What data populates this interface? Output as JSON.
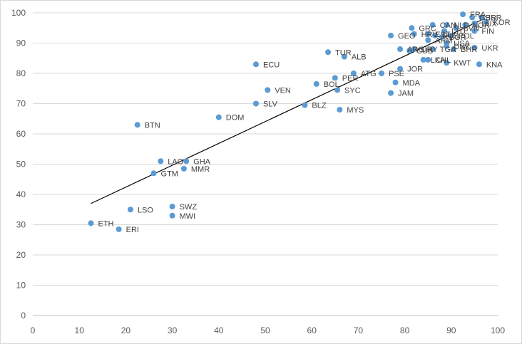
{
  "chart_data": {
    "type": "scatter",
    "title": "",
    "xlabel": "",
    "ylabel": "",
    "xlim": [
      0,
      100
    ],
    "ylim": [
      0,
      100
    ],
    "x_ticks": [
      "0",
      "10",
      "20",
      "30",
      "40",
      "50",
      "60",
      "70",
      "80",
      "90",
      "100"
    ],
    "y_ticks": [
      "0",
      "10",
      "20",
      "30",
      "40",
      "50",
      "60",
      "70",
      "80",
      "90",
      "100"
    ],
    "grid": "horizontal",
    "legend": "none",
    "marker_color": "#5b9bd5",
    "trendline": {
      "type": "linear",
      "x": [
        12.5,
        97
      ],
      "y": [
        37,
        98
      ]
    },
    "points": [
      {
        "label": "FRA",
        "x": 92.5,
        "y": 99.5
      },
      {
        "label": "ISR",
        "x": 96.5,
        "y": 98.5
      },
      {
        "label": "GBR",
        "x": 94.5,
        "y": 98.5
      },
      {
        "label": "KOR",
        "x": 97.5,
        "y": 97
      },
      {
        "label": "LUX",
        "x": 95,
        "y": 96.5
      },
      {
        "label": "CAN",
        "x": 86,
        "y": 96
      },
      {
        "label": "NLD",
        "x": 89,
        "y": 96
      },
      {
        "label": "NOR",
        "x": 93,
        "y": 96
      },
      {
        "label": "SVN",
        "x": 91,
        "y": 95
      },
      {
        "label": "GRC",
        "x": 81.5,
        "y": 95
      },
      {
        "label": "LTU",
        "x": 88.5,
        "y": 94
      },
      {
        "label": "FIN",
        "x": 95,
        "y": 94
      },
      {
        "label": "EST",
        "x": 85,
        "y": 93
      },
      {
        "label": "HRV",
        "x": 82,
        "y": 93
      },
      {
        "label": "RUS",
        "x": 86.5,
        "y": 92.5
      },
      {
        "label": "BGR",
        "x": 88,
        "y": 92
      },
      {
        "label": "POL",
        "x": 90,
        "y": 92.5
      },
      {
        "label": "GEO",
        "x": 77,
        "y": 92.5
      },
      {
        "label": "ARM",
        "x": 85,
        "y": 91
      },
      {
        "label": "USA",
        "x": 89,
        "y": 90
      },
      {
        "label": "DNK",
        "x": 89,
        "y": 89
      },
      {
        "label": "ARG",
        "x": 79,
        "y": 88
      },
      {
        "label": "URY",
        "x": 82,
        "y": 88
      },
      {
        "label": "CUB",
        "x": 81,
        "y": 87.5
      },
      {
        "label": "TGA",
        "x": 86,
        "y": 88
      },
      {
        "label": "BHR",
        "x": 90.5,
        "y": 88
      },
      {
        "label": "UKR",
        "x": 95,
        "y": 88.5
      },
      {
        "label": "TUR",
        "x": 63.5,
        "y": 87
      },
      {
        "label": "ALB",
        "x": 67,
        "y": 85.5
      },
      {
        "label": "LKA",
        "x": 84,
        "y": 84.5
      },
      {
        "label": "CHL",
        "x": 85,
        "y": 84.5
      },
      {
        "label": "KWT",
        "x": 89,
        "y": 83.5
      },
      {
        "label": "KNA",
        "x": 96,
        "y": 83
      },
      {
        "label": "ECU",
        "x": 48,
        "y": 83
      },
      {
        "label": "JOR",
        "x": 79,
        "y": 81.5
      },
      {
        "label": "PSE",
        "x": 75,
        "y": 80
      },
      {
        "label": "ATG",
        "x": 69,
        "y": 80
      },
      {
        "label": "PER",
        "x": 65,
        "y": 78.5
      },
      {
        "label": "MDA",
        "x": 78,
        "y": 77
      },
      {
        "label": "BOL",
        "x": 61,
        "y": 76.5
      },
      {
        "label": "VEN",
        "x": 50.5,
        "y": 74.5
      },
      {
        "label": "SYC",
        "x": 65.5,
        "y": 74.5
      },
      {
        "label": "JAM",
        "x": 77,
        "y": 73.5
      },
      {
        "label": "SLV",
        "x": 48,
        "y": 70
      },
      {
        "label": "BLZ",
        "x": 58.5,
        "y": 69.5
      },
      {
        "label": "MYS",
        "x": 66,
        "y": 68
      },
      {
        "label": "DOM",
        "x": 40,
        "y": 65.5
      },
      {
        "label": "BTN",
        "x": 22.5,
        "y": 63
      },
      {
        "label": "LAO",
        "x": 27.5,
        "y": 51
      },
      {
        "label": "GHA",
        "x": 33,
        "y": 51
      },
      {
        "label": "MMR",
        "x": 32.5,
        "y": 48.5
      },
      {
        "label": "GTM",
        "x": 26,
        "y": 47
      },
      {
        "label": "SWZ",
        "x": 30,
        "y": 36
      },
      {
        "label": "LSO",
        "x": 21,
        "y": 35
      },
      {
        "label": "MWI",
        "x": 30,
        "y": 33
      },
      {
        "label": "ETH",
        "x": 12.5,
        "y": 30.5
      },
      {
        "label": "ERI",
        "x": 18.5,
        "y": 28.5
      }
    ]
  }
}
